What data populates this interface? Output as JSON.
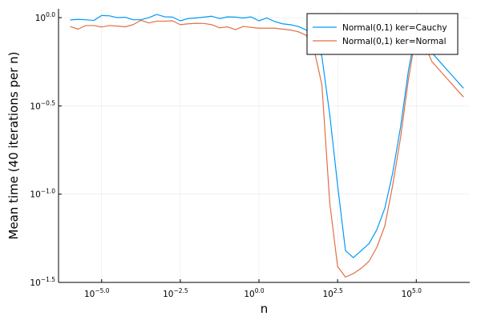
{
  "chart_data": {
    "type": "line",
    "xlabel": "n",
    "ylabel": "Mean time (40 iterations per n)",
    "x_scale": "log10",
    "y_scale": "log10",
    "xlim_log10": [
      -6.37,
      6.7
    ],
    "ylim_log10": [
      -1.5,
      0.05
    ],
    "x_ticks": [
      {
        "exp": "−5.0",
        "value_log10": -5.0
      },
      {
        "exp": "−2.5",
        "value_log10": -2.5
      },
      {
        "exp": "0.0",
        "value_log10": 0.0
      },
      {
        "exp": "2.5",
        "value_log10": 2.5
      },
      {
        "exp": "5.0",
        "value_log10": 5.0
      }
    ],
    "y_ticks": [
      {
        "exp": "0.0",
        "value_log10": 0.0
      },
      {
        "exp": "−0.5",
        "value_log10": -0.5
      },
      {
        "exp": "−1.0",
        "value_log10": -1.0
      },
      {
        "exp": "−1.5",
        "value_log10": -1.5
      }
    ],
    "tick_base": "10",
    "grid": true,
    "legend_position": "top-right",
    "x_log10": [
      -6.0,
      -5.75,
      -5.5,
      -5.25,
      -5.0,
      -4.75,
      -4.5,
      -4.25,
      -4.0,
      -3.75,
      -3.5,
      -3.25,
      -3.0,
      -2.75,
      -2.5,
      -2.25,
      -2.0,
      -1.75,
      -1.5,
      -1.25,
      -1.0,
      -0.75,
      -0.5,
      -0.25,
      0.0,
      0.25,
      0.5,
      0.75,
      1.0,
      1.25,
      1.5,
      1.75,
      2.0,
      2.25,
      2.5,
      2.75,
      3.0,
      3.25,
      3.5,
      3.75,
      4.0,
      4.25,
      4.5,
      4.75,
      5.0,
      5.25,
      5.5,
      5.75,
      6.0,
      6.25,
      6.5
    ],
    "series": [
      {
        "name": "Normal(0,1) ker=Cauchy",
        "color": "#009AFA",
        "y_log10": [
          -0.013,
          -0.01,
          -0.012,
          -0.016,
          0.012,
          0.01,
          0.0,
          0.002,
          -0.012,
          -0.012,
          0.0,
          0.018,
          0.005,
          0.003,
          -0.018,
          -0.005,
          -0.002,
          0.003,
          0.008,
          -0.005,
          0.004,
          0.003,
          -0.002,
          0.004,
          -0.018,
          -0.002,
          -0.022,
          -0.035,
          -0.04,
          -0.05,
          -0.07,
          -0.1,
          -0.22,
          -0.55,
          -0.95,
          -1.32,
          -1.36,
          -1.32,
          -1.28,
          -1.2,
          -1.08,
          -0.88,
          -0.62,
          -0.3,
          -0.07,
          -0.12,
          -0.2,
          -0.25,
          -0.3,
          -0.35,
          -0.4
        ]
      },
      {
        "name": "Normal(0,1) ker=Normal",
        "color": "#E26F46",
        "y_log10": [
          -0.05,
          -0.065,
          -0.045,
          -0.045,
          -0.053,
          -0.045,
          -0.048,
          -0.052,
          -0.04,
          -0.015,
          -0.03,
          -0.02,
          -0.02,
          -0.018,
          -0.04,
          -0.035,
          -0.032,
          -0.033,
          -0.04,
          -0.058,
          -0.052,
          -0.068,
          -0.05,
          -0.055,
          -0.06,
          -0.06,
          -0.06,
          -0.065,
          -0.07,
          -0.08,
          -0.1,
          -0.18,
          -0.38,
          -1.05,
          -1.41,
          -1.47,
          -1.45,
          -1.42,
          -1.38,
          -1.3,
          -1.18,
          -0.95,
          -0.68,
          -0.35,
          -0.085,
          -0.15,
          -0.25,
          -0.3,
          -0.35,
          -0.4,
          -0.45
        ]
      }
    ]
  }
}
